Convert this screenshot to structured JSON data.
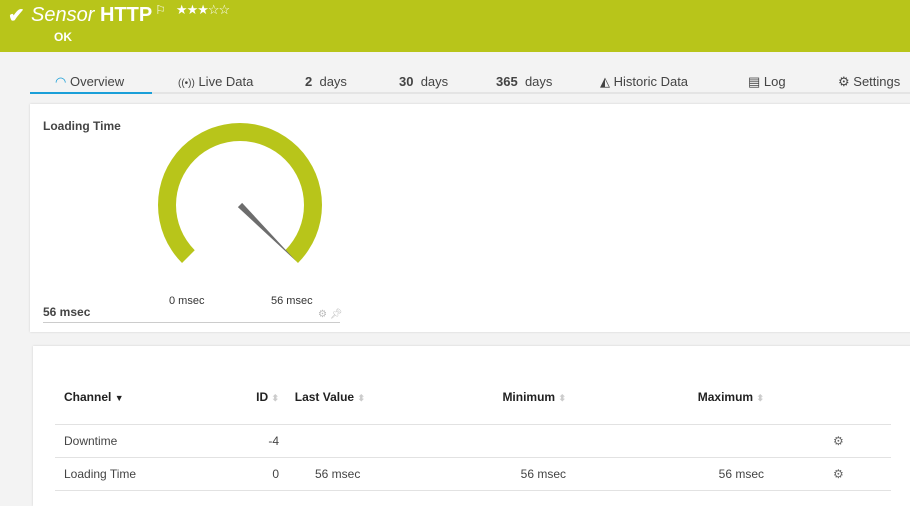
{
  "header": {
    "prefix": "Sensor",
    "name": "HTTP",
    "status": "OK",
    "priority_stars": 3,
    "priority_max": 5,
    "color": "#b8c51a"
  },
  "tabs": [
    {
      "label": "Overview",
      "icon": "gauge-icon"
    },
    {
      "label": "Live Data",
      "icon": "broadcast-icon"
    },
    {
      "num": "2",
      "label": "days"
    },
    {
      "num": "30",
      "label": "days"
    },
    {
      "num": "365",
      "label": "days"
    },
    {
      "label": "Historic Data",
      "icon": "area-chart-icon"
    },
    {
      "label": "Log",
      "icon": "log-icon"
    },
    {
      "label": "Settings",
      "icon": "gear-icon"
    }
  ],
  "gauge": {
    "title": "Loading Time",
    "value_text": "56 msec",
    "min_label": "0 msec",
    "max_label": "56 msec",
    "value": 56,
    "min": 0,
    "max": 56,
    "color": "#b8c51a"
  },
  "table": {
    "headers": {
      "channel": "Channel",
      "id": "ID",
      "last_value": "Last Value",
      "minimum": "Minimum",
      "maximum": "Maximum"
    },
    "rows": [
      {
        "channel": "Downtime",
        "id": "-4",
        "last": "",
        "min": "",
        "max": ""
      },
      {
        "channel": "Loading Time",
        "id": "0",
        "last": "56 msec",
        "min": "56 msec",
        "max": "56 msec"
      }
    ]
  }
}
